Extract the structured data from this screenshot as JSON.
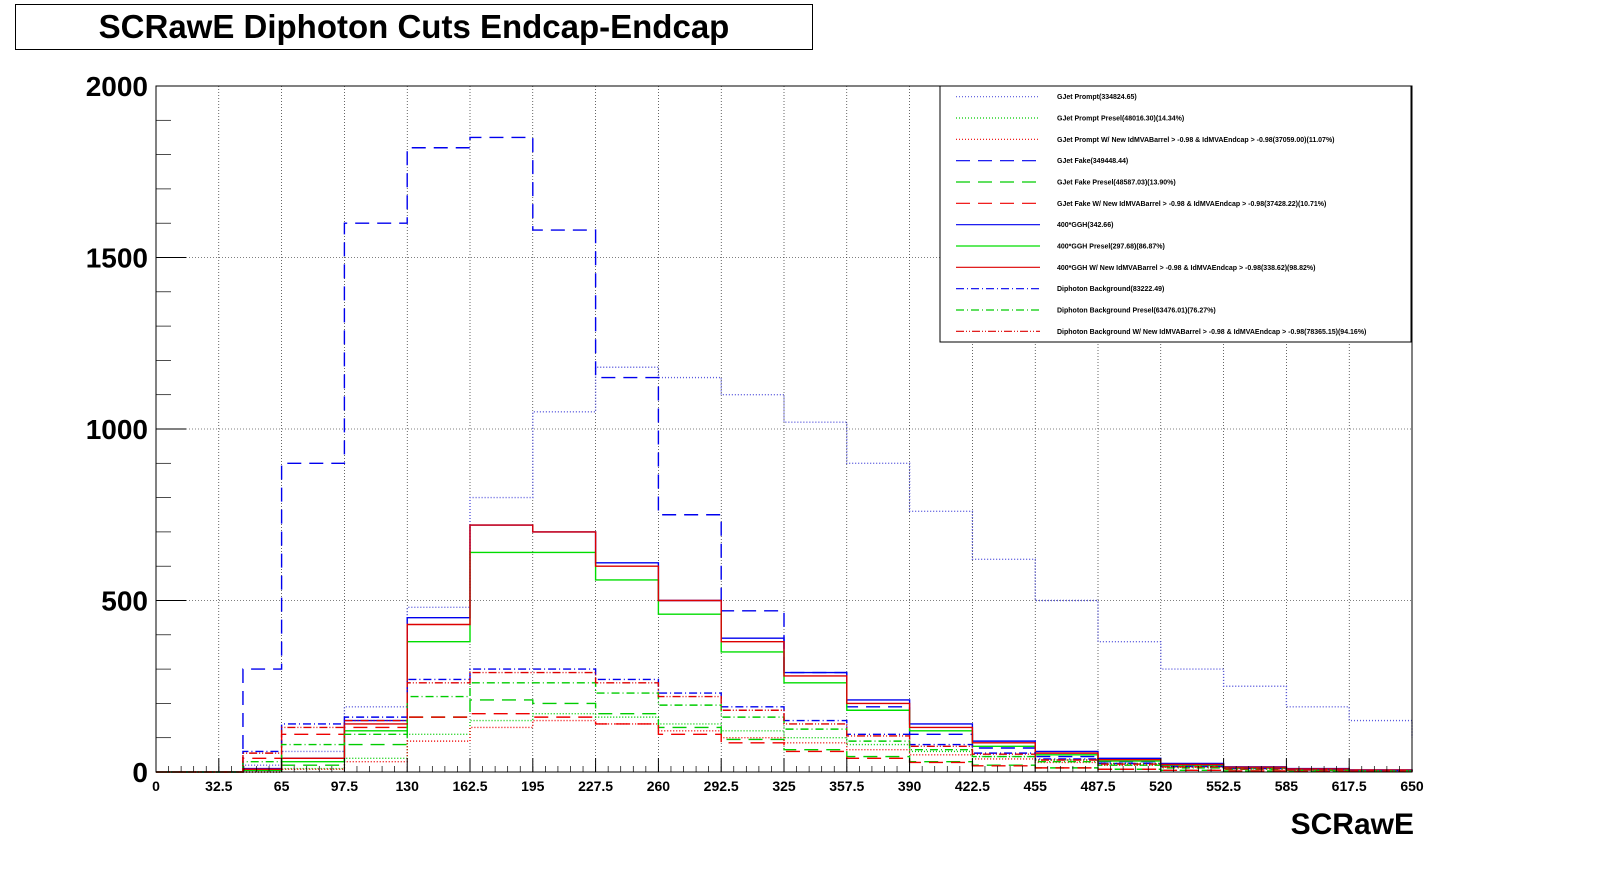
{
  "chart_data": {
    "type": "line",
    "title": "SCRawE Diphoton Cuts Endcap-Endcap",
    "xlabel": "SCRawE",
    "ylabel": "",
    "xlim": [
      0,
      650
    ],
    "ylim": [
      0,
      2000
    ],
    "grid": true,
    "legend_position": "top-right",
    "x_ticks": [
      "0",
      "32.5",
      "65",
      "97.5",
      "130",
      "162.5",
      "195",
      "227.5",
      "260",
      "292.5",
      "325",
      "357.5",
      "390",
      "422.5",
      "455",
      "487.5",
      "520",
      "552.5",
      "585",
      "617.5",
      "650"
    ],
    "y_ticks": [
      "0",
      "500",
      "1000",
      "1500",
      "2000"
    ],
    "x": [
      0,
      32.5,
      45,
      65,
      97.5,
      130,
      162.5,
      195,
      227.5,
      260,
      292.5,
      325,
      357.5,
      390,
      422.5,
      455,
      487.5,
      520,
      552.5,
      585,
      617.5,
      650
    ],
    "series": [
      {
        "name": "GJet Prompt(334824.65)",
        "color": "#5555dd",
        "dash": "dotted",
        "values": [
          0,
          0,
          20,
          60,
          190,
          480,
          800,
          1050,
          1180,
          1150,
          1100,
          1020,
          900,
          760,
          620,
          500,
          380,
          300,
          250,
          190,
          150,
          100
        ]
      },
      {
        "name": "GJet Prompt Presel(48016.30)(14.34%)",
        "color": "#00cc00",
        "dash": "dotted",
        "values": [
          0,
          0,
          0,
          10,
          40,
          110,
          150,
          170,
          160,
          140,
          120,
          100,
          80,
          60,
          45,
          35,
          25,
          18,
          12,
          8,
          5,
          3
        ]
      },
      {
        "name": "GJet Prompt W/ New IdMVABarrel > -0.98 & IdMVAEndcap > -0.98(37059.00)(11.07%)",
        "color": "#ee0000",
        "dash": "dotted",
        "values": [
          0,
          0,
          0,
          8,
          30,
          90,
          130,
          150,
          140,
          120,
          100,
          85,
          65,
          50,
          38,
          28,
          20,
          14,
          10,
          6,
          4,
          2
        ]
      },
      {
        "name": "GJet Fake(349448.44)",
        "color": "#0000ee",
        "dash": "dashed",
        "values": [
          0,
          0,
          300,
          900,
          1600,
          1820,
          1850,
          1580,
          1150,
          750,
          470,
          290,
          190,
          110,
          70,
          45,
          30,
          20,
          12,
          8,
          5,
          3
        ]
      },
      {
        "name": "GJet Fake Presel(48587.03)(13.90%)",
        "color": "#00cc00",
        "dash": "dashed",
        "values": [
          0,
          0,
          5,
          20,
          80,
          160,
          210,
          200,
          170,
          130,
          95,
          65,
          45,
          30,
          20,
          12,
          8,
          5,
          3,
          2,
          1,
          0
        ]
      },
      {
        "name": "GJet Fake W/ New IdMVABarrel > -0.98 & IdMVAEndcap > -0.98(37428.22)(10.71%)",
        "color": "#ee0000",
        "dash": "dashed",
        "values": [
          0,
          0,
          40,
          110,
          130,
          160,
          170,
          160,
          140,
          110,
          85,
          60,
          40,
          28,
          18,
          12,
          8,
          5,
          3,
          2,
          1,
          0
        ]
      },
      {
        "name": "400*GGH(342.66)",
        "color": "#0000ee",
        "dash": "solid",
        "values": [
          0,
          0,
          10,
          40,
          150,
          450,
          720,
          700,
          610,
          500,
          390,
          290,
          210,
          140,
          90,
          60,
          40,
          25,
          15,
          10,
          6,
          4
        ]
      },
      {
        "name": "400*GGH Presel(297.68)(86.87%)",
        "color": "#00dd00",
        "dash": "solid",
        "values": [
          0,
          0,
          5,
          30,
          120,
          380,
          640,
          640,
          560,
          460,
          350,
          260,
          180,
          120,
          75,
          50,
          32,
          20,
          12,
          8,
          5,
          3
        ]
      },
      {
        "name": "400*GGH W/ New IdMVABarrel > -0.98 & IdMVAEndcap > -0.98(338.62)(98.82%)",
        "color": "#dd0000",
        "dash": "solid",
        "values": [
          0,
          0,
          8,
          40,
          140,
          430,
          720,
          700,
          600,
          500,
          380,
          280,
          200,
          130,
          85,
          55,
          36,
          22,
          14,
          9,
          6,
          3
        ]
      },
      {
        "name": "Diphoton Background(83222.49)",
        "color": "#0000ee",
        "dash": "dashdot",
        "values": [
          0,
          0,
          60,
          140,
          160,
          270,
          300,
          300,
          270,
          230,
          190,
          150,
          110,
          80,
          55,
          38,
          25,
          16,
          10,
          6,
          4,
          2
        ]
      },
      {
        "name": "Diphoton Background Presel(63476.01)(76.27%)",
        "color": "#00cc00",
        "dash": "dashdot",
        "values": [
          0,
          0,
          30,
          80,
          110,
          220,
          260,
          260,
          230,
          195,
          160,
          125,
          90,
          65,
          45,
          30,
          20,
          12,
          8,
          5,
          3,
          2
        ]
      },
      {
        "name": "Diphoton Background W/ New IdMVABarrel > -0.98 & IdMVAEndcap > -0.98(78365.15)(94.16%)",
        "color": "#dd0000",
        "dash": "dashdotdot",
        "values": [
          0,
          0,
          55,
          130,
          150,
          260,
          290,
          290,
          260,
          220,
          180,
          140,
          105,
          75,
          52,
          35,
          23,
          15,
          9,
          6,
          3,
          2
        ]
      }
    ]
  }
}
